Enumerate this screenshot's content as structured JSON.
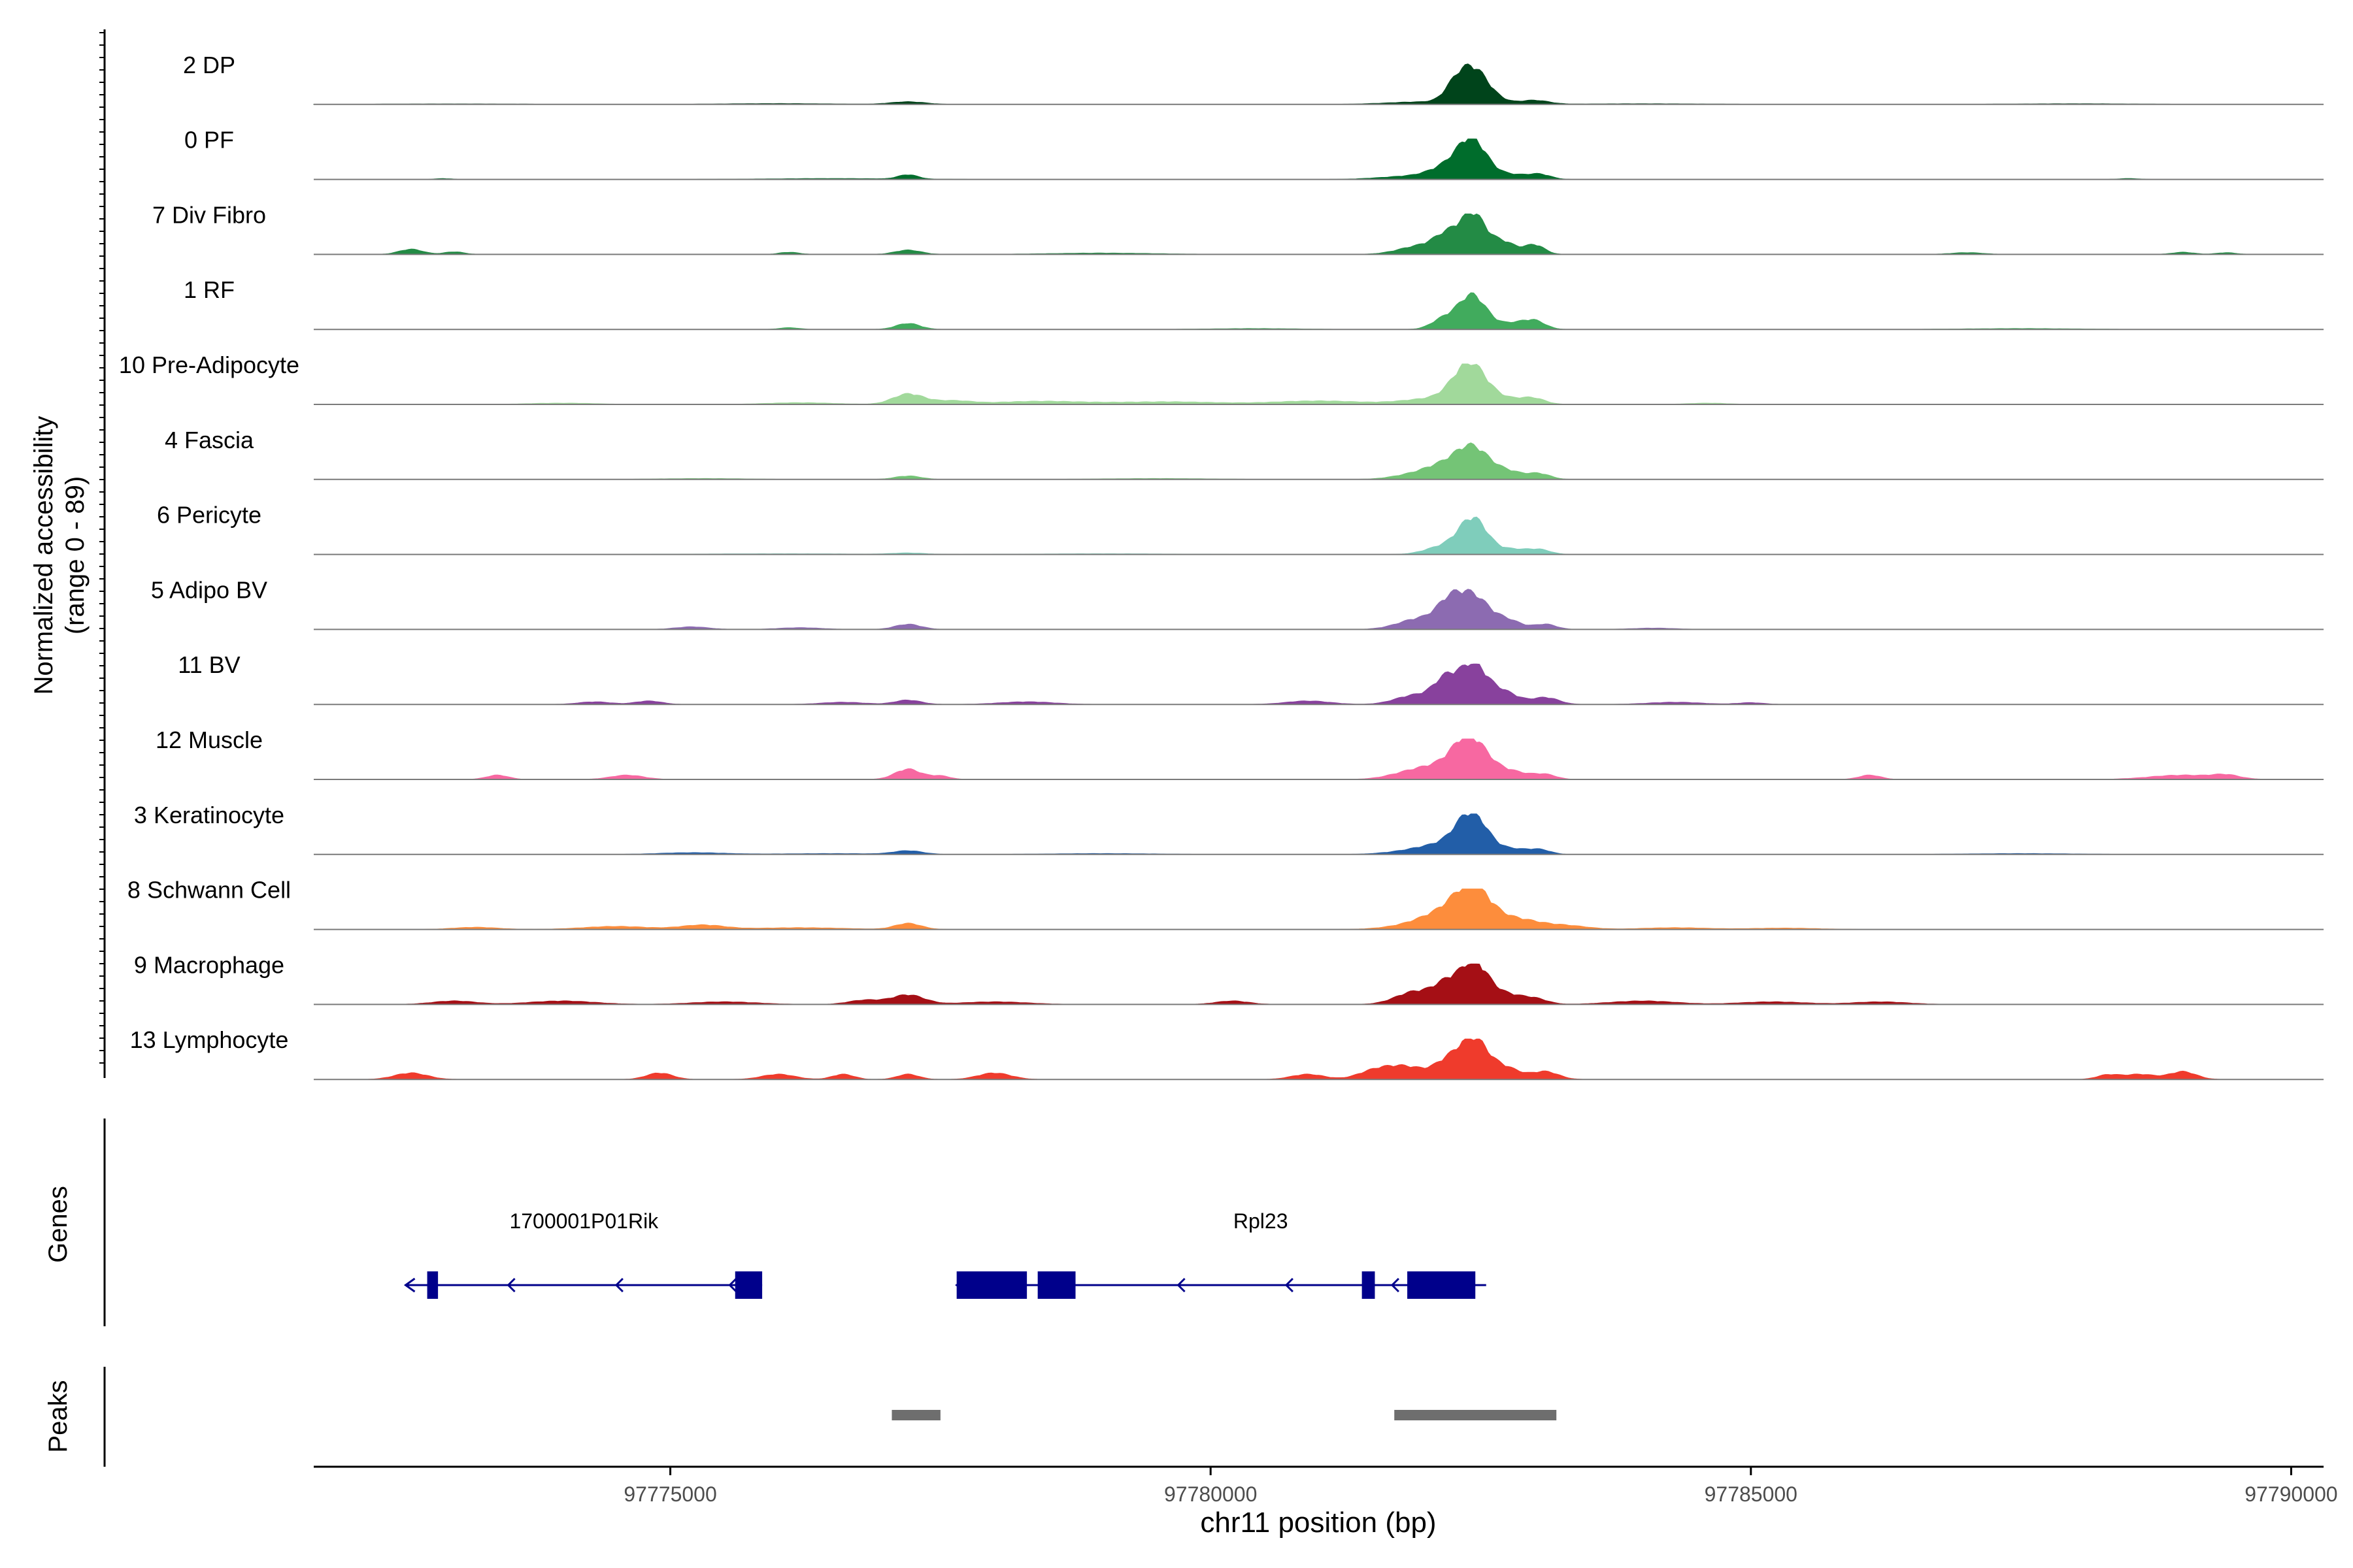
{
  "chart_data": {
    "type": "area",
    "title": "",
    "ylabel_line1": "Normalized accessibility",
    "ylabel_line2": "(range 0 - 89)",
    "yrange": [
      0,
      89
    ],
    "xlabel": "chr11 position (bp)",
    "xlim": [
      97771700,
      97790300
    ],
    "xticks": [
      97775000,
      97780000,
      97785000,
      97790000
    ],
    "xtick_labels": [
      "97775000",
      "97780000",
      "97785000",
      "97790000"
    ],
    "tracks": [
      {
        "name": "2 DP",
        "color": "#00441b",
        "peaks": [
          [
            97782420,
            82,
            140
          ],
          [
            97782250,
            20,
            90
          ],
          [
            97782000,
            6,
            350
          ],
          [
            97782650,
            5,
            140
          ],
          [
            97783000,
            9,
            130
          ],
          [
            97777200,
            6,
            160
          ],
          [
            97776000,
            2,
            500
          ],
          [
            97784000,
            1.5,
            600
          ],
          [
            97788000,
            1.5,
            600
          ],
          [
            97773000,
            1.2,
            600
          ]
        ]
      },
      {
        "name": "0 PF",
        "color": "#006d2c",
        "peaks": [
          [
            97782420,
            84,
            130
          ],
          [
            97782200,
            25,
            160
          ],
          [
            97781900,
            8,
            300
          ],
          [
            97782750,
            12,
            180
          ],
          [
            97783050,
            10,
            100
          ],
          [
            97777200,
            10,
            90
          ],
          [
            97776500,
            2,
            600
          ],
          [
            97788500,
            2,
            90
          ],
          [
            97772900,
            2,
            70
          ]
        ]
      },
      {
        "name": "7 Div Fibro",
        "color": "#238b45",
        "peaks": [
          [
            97782430,
            89,
            110
          ],
          [
            97782200,
            40,
            120
          ],
          [
            97781950,
            20,
            200
          ],
          [
            97782700,
            30,
            120
          ],
          [
            97783000,
            22,
            90
          ],
          [
            97772600,
            12,
            110
          ],
          [
            97773000,
            6,
            90
          ],
          [
            97777200,
            10,
            120
          ],
          [
            97776100,
            5,
            90
          ],
          [
            97779000,
            3,
            500
          ],
          [
            97787000,
            4,
            150
          ],
          [
            97789000,
            5,
            100
          ],
          [
            97789400,
            4,
            90
          ]
        ]
      },
      {
        "name": "1 RF",
        "color": "#41ab5d",
        "peaks": [
          [
            97782420,
            80,
            130
          ],
          [
            97782150,
            22,
            110
          ],
          [
            97782800,
            14,
            130
          ],
          [
            97783000,
            18,
            100
          ],
          [
            97777200,
            14,
            110
          ],
          [
            97776100,
            4,
            90
          ],
          [
            97780400,
            2,
            400
          ],
          [
            97787500,
            2,
            500
          ]
        ]
      },
      {
        "name": "10 Pre-Adipocyte",
        "color": "#a1d99b",
        "peaks": [
          [
            97782400,
            89,
            150
          ],
          [
            97782100,
            14,
            300
          ],
          [
            97782800,
            12,
            180
          ],
          [
            97783000,
            9,
            100
          ],
          [
            97777200,
            24,
            140
          ],
          [
            97777600,
            8,
            180
          ],
          [
            97778400,
            7,
            400
          ],
          [
            97779600,
            6,
            500
          ],
          [
            97781000,
            8,
            400
          ],
          [
            97776200,
            4,
            300
          ],
          [
            97774000,
            3,
            300
          ],
          [
            97784600,
            3,
            180
          ]
        ]
      },
      {
        "name": "4 Fascia",
        "color": "#74c476",
        "peaks": [
          [
            97782420,
            72,
            150
          ],
          [
            97782150,
            25,
            160
          ],
          [
            97781900,
            12,
            200
          ],
          [
            97782750,
            18,
            150
          ],
          [
            97783050,
            12,
            100
          ],
          [
            97777200,
            8,
            120
          ],
          [
            97775300,
            2,
            400
          ],
          [
            97779500,
            2,
            500
          ]
        ]
      },
      {
        "name": "6 Pericyte",
        "color": "#7fcdbb",
        "peaks": [
          [
            97782430,
            82,
            130
          ],
          [
            97782150,
            18,
            160
          ],
          [
            97782800,
            12,
            140
          ],
          [
            97783050,
            10,
            100
          ],
          [
            97777200,
            3,
            150
          ],
          [
            97776000,
            1.5,
            700
          ],
          [
            97779000,
            1.5,
            600
          ]
        ]
      },
      {
        "name": "5 Adipo BV",
        "color": "#8c6bb1",
        "peaks": [
          [
            97782420,
            78,
            150
          ],
          [
            97782200,
            42,
            110
          ],
          [
            97781950,
            26,
            200
          ],
          [
            97782750,
            20,
            130
          ],
          [
            97783100,
            12,
            100
          ],
          [
            97777200,
            12,
            120
          ],
          [
            97775200,
            6,
            150
          ],
          [
            97776200,
            4,
            200
          ],
          [
            97784100,
            3,
            200
          ]
        ]
      },
      {
        "name": "11 BV",
        "color": "#88419d",
        "peaks": [
          [
            97782430,
            89,
            120
          ],
          [
            97782180,
            55,
            110
          ],
          [
            97781900,
            22,
            180
          ],
          [
            97782700,
            30,
            140
          ],
          [
            97783100,
            16,
            120
          ],
          [
            97774800,
            8,
            120
          ],
          [
            97774300,
            6,
            150
          ],
          [
            97776600,
            5,
            200
          ],
          [
            97777200,
            10,
            120
          ],
          [
            97778300,
            6,
            250
          ],
          [
            97780900,
            8,
            200
          ],
          [
            97784300,
            5,
            250
          ],
          [
            97785000,
            4,
            120
          ]
        ]
      },
      {
        "name": "12 Muscle",
        "color": "#f768a1",
        "peaks": [
          [
            97782400,
            89,
            150
          ],
          [
            97782150,
            25,
            200
          ],
          [
            97781850,
            15,
            200
          ],
          [
            97782750,
            20,
            180
          ],
          [
            97783100,
            10,
            100
          ],
          [
            97777200,
            24,
            120
          ],
          [
            97777500,
            8,
            90
          ],
          [
            97773400,
            10,
            100
          ],
          [
            97774600,
            10,
            150
          ],
          [
            97786100,
            10,
            100
          ],
          [
            97789000,
            10,
            300
          ],
          [
            97789400,
            8,
            120
          ]
        ]
      },
      {
        "name": "3 Keratinocyte",
        "color": "#225ea8",
        "peaks": [
          [
            97782420,
            86,
            140
          ],
          [
            97782200,
            20,
            220
          ],
          [
            97781900,
            8,
            250
          ],
          [
            97782800,
            12,
            140
          ],
          [
            97783050,
            10,
            100
          ],
          [
            97777200,
            8,
            130
          ],
          [
            97775200,
            4,
            300
          ],
          [
            97776500,
            2,
            500
          ],
          [
            97779000,
            2,
            500
          ],
          [
            97787500,
            2,
            500
          ]
        ]
      },
      {
        "name": "8 Schwann Cell",
        "color": "#fd8d3c",
        "peaks": [
          [
            97782420,
            89,
            160
          ],
          [
            97782150,
            30,
            200
          ],
          [
            97781900,
            10,
            250
          ],
          [
            97782800,
            25,
            230
          ],
          [
            97783300,
            8,
            200
          ],
          [
            97777200,
            14,
            120
          ],
          [
            97775300,
            10,
            200
          ],
          [
            97774500,
            7,
            300
          ],
          [
            97773200,
            5,
            200
          ],
          [
            97776200,
            4,
            400
          ],
          [
            97784300,
            4,
            300
          ],
          [
            97785300,
            3,
            300
          ]
        ]
      },
      {
        "name": "9 Macrophage",
        "color": "#a50f15",
        "peaks": [
          [
            97782440,
            89,
            120
          ],
          [
            97782200,
            45,
            120
          ],
          [
            97781900,
            30,
            180
          ],
          [
            97782700,
            25,
            160
          ],
          [
            97783000,
            12,
            120
          ],
          [
            97777200,
            22,
            150
          ],
          [
            97776800,
            10,
            150
          ],
          [
            97773000,
            8,
            200
          ],
          [
            97774000,
            8,
            300
          ],
          [
            97775500,
            6,
            300
          ],
          [
            97778000,
            6,
            300
          ],
          [
            97780200,
            8,
            150
          ],
          [
            97784000,
            8,
            300
          ],
          [
            97785200,
            6,
            300
          ],
          [
            97786200,
            6,
            250
          ]
        ]
      },
      {
        "name": "13 Lymphocyte",
        "color": "#ef3b2c",
        "peaks": [
          [
            97782430,
            89,
            120
          ],
          [
            97782200,
            40,
            120
          ],
          [
            97781800,
            30,
            200
          ],
          [
            97782700,
            30,
            150
          ],
          [
            97783100,
            18,
            120
          ],
          [
            97772600,
            15,
            150
          ],
          [
            97774900,
            15,
            120
          ],
          [
            97776000,
            12,
            150
          ],
          [
            97776600,
            12,
            100
          ],
          [
            97777200,
            12,
            100
          ],
          [
            97778000,
            15,
            150
          ],
          [
            97780900,
            12,
            150
          ],
          [
            97781500,
            15,
            150
          ],
          [
            97788600,
            12,
            150
          ],
          [
            97789000,
            18,
            120
          ],
          [
            97788300,
            10,
            100
          ]
        ]
      }
    ],
    "genes_label": "Genes",
    "genes": [
      {
        "name": "1700001P01Rik",
        "strand": "-",
        "start": 97772550,
        "end": 97775850,
        "exons": [
          [
            97772750,
            97772850
          ],
          [
            97775600,
            97775850
          ]
        ],
        "arrows": [
          97773500,
          97774500,
          97775550
        ]
      },
      {
        "name": "Rpl23",
        "strand": "-",
        "start": 97777650,
        "end": 97782550,
        "exons": [
          [
            97777650,
            97778300
          ],
          [
            97778400,
            97778750
          ],
          [
            97781400,
            97781520
          ],
          [
            97781820,
            97782450
          ]
        ],
        "arrows": [
          97779700,
          97780700,
          97781680
        ]
      }
    ],
    "peaks_label": "Peaks",
    "peak_regions": [
      [
        97777050,
        97777500
      ],
      [
        97781700,
        97783200
      ]
    ]
  }
}
